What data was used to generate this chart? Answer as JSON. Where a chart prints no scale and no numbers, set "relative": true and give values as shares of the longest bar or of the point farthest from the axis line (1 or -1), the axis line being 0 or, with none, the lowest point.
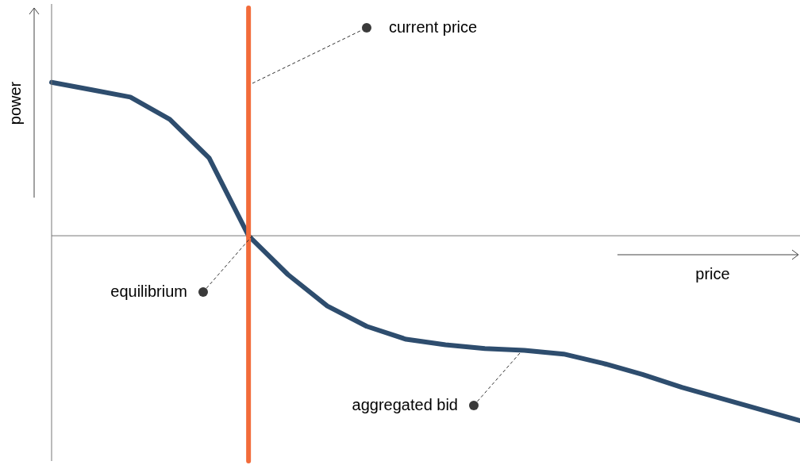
{
  "chart_data": {
    "type": "line",
    "relative": true,
    "xlabel": "price",
    "ylabel": "power",
    "legend": false,
    "marker": "none",
    "line_style": "solid",
    "categories": [
      null,
      null,
      null,
      null,
      null,
      null,
      null,
      null,
      null,
      null,
      null,
      null,
      null,
      null,
      null,
      null,
      null,
      null,
      null,
      null
    ],
    "series": [
      {
        "color": "#2e4d6e",
        "values": [
          0.83,
          0.79,
          0.75,
          0.63,
          0.42,
          0,
          -0.21,
          -0.38,
          -0.49,
          -0.56,
          -0.59,
          -0.61,
          -0.62,
          -0.64,
          -0.69,
          -0.75,
          -0.82,
          -0.88,
          -0.94,
          -1
        ]
      }
    ],
    "ref_lines": [
      {
        "axis": "x",
        "color": "#f26b3a"
      }
    ],
    "annotations": [
      "current price",
      "equilibrium",
      "aggregated bid"
    ]
  }
}
